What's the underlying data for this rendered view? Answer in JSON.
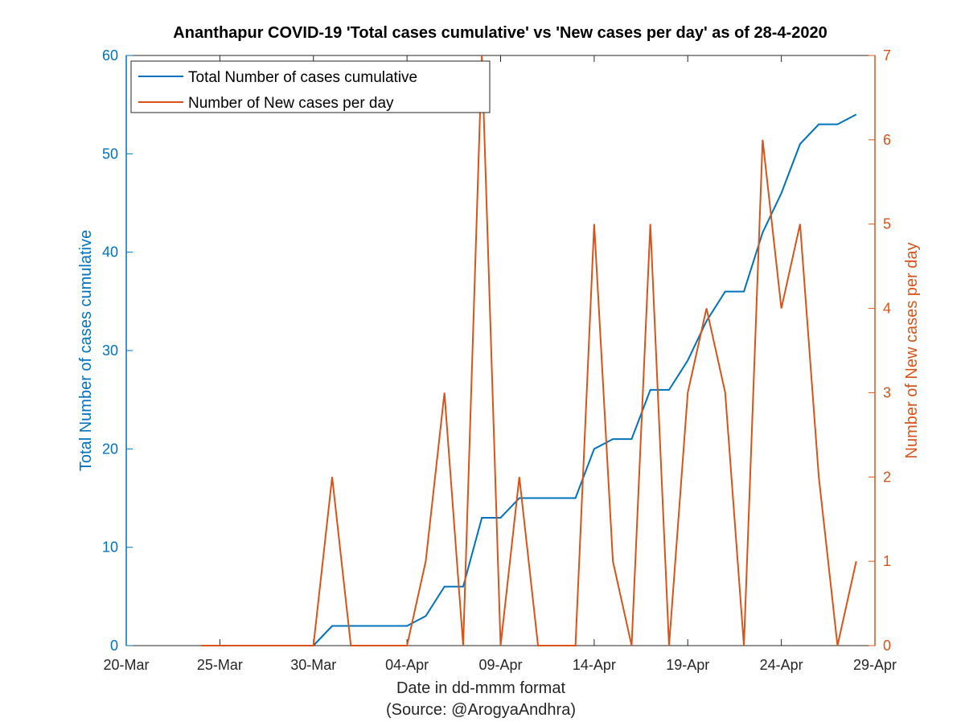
{
  "chart_data": {
    "type": "line",
    "title": "Ananthapur COVID-19 'Total cases cumulative' vs 'New cases per day' as of 28-4-2020",
    "xlabel": "Date in dd-mmm format",
    "source_note": "(Source: @ArogyaAndhra)",
    "ylabel_left": "Total Number of cases cumulative",
    "ylabel_right": "Number of New cases per day",
    "x_ticks": [
      "20-Mar",
      "25-Mar",
      "30-Mar",
      "04-Apr",
      "09-Apr",
      "14-Apr",
      "19-Apr",
      "24-Apr",
      "29-Apr"
    ],
    "y_left_ticks": [
      "0",
      "10",
      "20",
      "30",
      "40",
      "50",
      "60"
    ],
    "y_right_ticks": [
      "0",
      "1",
      "2",
      "3",
      "4",
      "5",
      "6",
      "7"
    ],
    "ylim_left": [
      0,
      60
    ],
    "ylim_right": [
      0,
      7
    ],
    "xlim": [
      "2020-03-20",
      "2020-04-29"
    ],
    "grid": false,
    "legend_placement": "top-left",
    "series": [
      {
        "name": "Total Number of cases cumulative",
        "axis": "left",
        "color": "#0072BD",
        "x": [
          "2020-03-30",
          "2020-03-31",
          "2020-04-01",
          "2020-04-02",
          "2020-04-03",
          "2020-04-04",
          "2020-04-05",
          "2020-04-06",
          "2020-04-07",
          "2020-04-08",
          "2020-04-09",
          "2020-04-10",
          "2020-04-11",
          "2020-04-12",
          "2020-04-13",
          "2020-04-14",
          "2020-04-15",
          "2020-04-16",
          "2020-04-17",
          "2020-04-18",
          "2020-04-19",
          "2020-04-20",
          "2020-04-21",
          "2020-04-22",
          "2020-04-23",
          "2020-04-24",
          "2020-04-25",
          "2020-04-26",
          "2020-04-27",
          "2020-04-28"
        ],
        "values": [
          0,
          2,
          2,
          2,
          2,
          2,
          3,
          6,
          6,
          13,
          13,
          15,
          15,
          15,
          15,
          20,
          21,
          21,
          26,
          26,
          29,
          33,
          36,
          36,
          42,
          46,
          51,
          53,
          53,
          54
        ]
      },
      {
        "name": "Number of New cases per day",
        "axis": "right",
        "color": "#D95319",
        "x": [
          "2020-03-24",
          "2020-03-25",
          "2020-03-26",
          "2020-03-27",
          "2020-03-28",
          "2020-03-29",
          "2020-03-30",
          "2020-03-31",
          "2020-04-01",
          "2020-04-02",
          "2020-04-03",
          "2020-04-04",
          "2020-04-05",
          "2020-04-06",
          "2020-04-07",
          "2020-04-08",
          "2020-04-09",
          "2020-04-10",
          "2020-04-11",
          "2020-04-12",
          "2020-04-13",
          "2020-04-14",
          "2020-04-15",
          "2020-04-16",
          "2020-04-17",
          "2020-04-18",
          "2020-04-19",
          "2020-04-20",
          "2020-04-21",
          "2020-04-22",
          "2020-04-23",
          "2020-04-24",
          "2020-04-25",
          "2020-04-26",
          "2020-04-27",
          "2020-04-28"
        ],
        "values": [
          0,
          0,
          0,
          0,
          0,
          0,
          0,
          2,
          0,
          0,
          0,
          0,
          1,
          3,
          0,
          7,
          0,
          2,
          0,
          0,
          0,
          5,
          1,
          0,
          5,
          0,
          3,
          4,
          3,
          0,
          6,
          4,
          5,
          2,
          0,
          1
        ]
      }
    ]
  },
  "colors": {
    "left_axis": "#0072BD",
    "right_axis": "#D95319",
    "axis_black": "#262626"
  }
}
